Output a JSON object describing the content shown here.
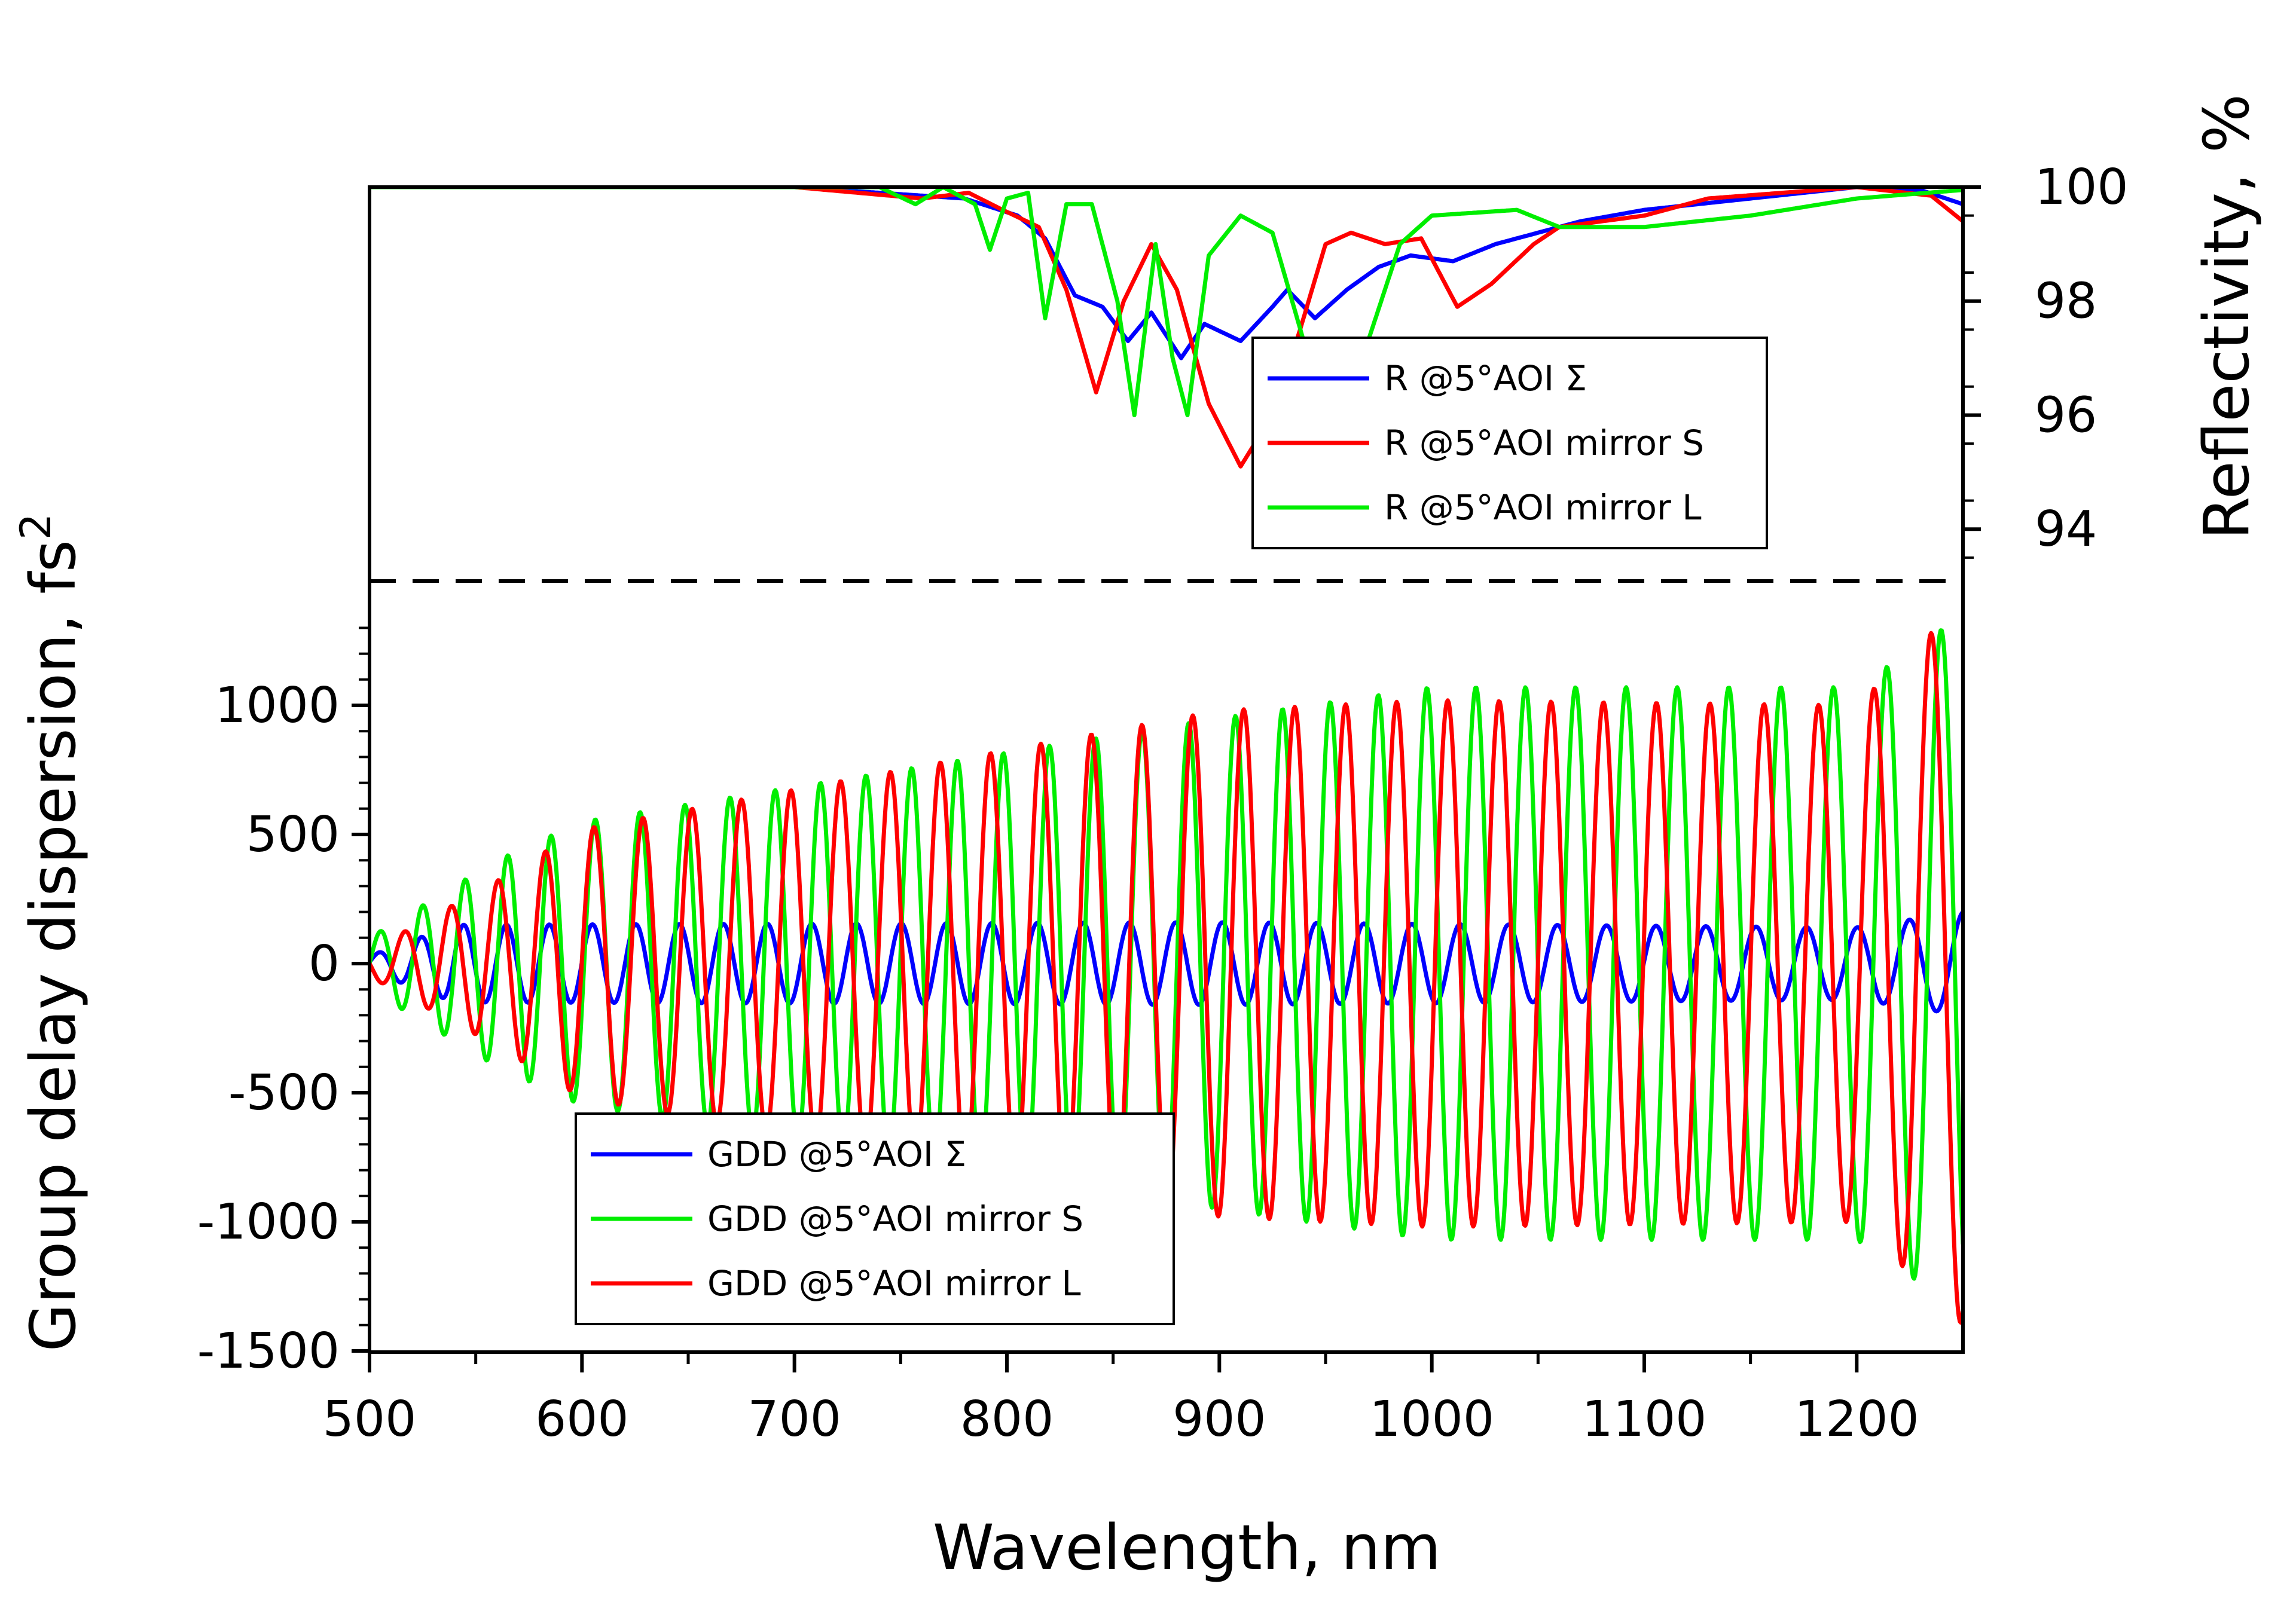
{
  "chart_data": {
    "type": "line",
    "xlabel": "Wavelength, nm",
    "xlim": [
      500,
      1250
    ],
    "x_ticks": [
      "500",
      "600",
      "700",
      "800",
      "900",
      "1000",
      "1100",
      "1200"
    ],
    "panels": [
      {
        "id": "reflectivity",
        "ylabel": "Reflectivity, %",
        "ylim": [
          93.3,
          100
        ],
        "y_ticks": [
          "94",
          "96",
          "98",
          "100"
        ],
        "y_axis_side": "right",
        "legend": "center-right",
        "series": [
          {
            "name": "R @5°AOI Σ",
            "color": "#0000FF",
            "points": [
              [
                500,
                100
              ],
              [
                700,
                100
              ],
              [
                780,
                99.8
              ],
              [
                805,
                99.5
              ],
              [
                818,
                99.1
              ],
              [
                832,
                98.1
              ],
              [
                845,
                97.9
              ],
              [
                857,
                97.3
              ],
              [
                868,
                97.8
              ],
              [
                882,
                97
              ],
              [
                893,
                97.6
              ],
              [
                910,
                97.3
              ],
              [
                925,
                97.9
              ],
              [
                932,
                98.2
              ],
              [
                945,
                97.7
              ],
              [
                960,
                98.2
              ],
              [
                975,
                98.6
              ],
              [
                990,
                98.8
              ],
              [
                1010,
                98.7
              ],
              [
                1030,
                99
              ],
              [
                1050,
                99.2
              ],
              [
                1070,
                99.4
              ],
              [
                1100,
                99.6
              ],
              [
                1150,
                99.8
              ],
              [
                1200,
                100
              ],
              [
                1230,
                99.95
              ],
              [
                1250,
                99.7
              ]
            ]
          },
          {
            "name": "R @5°AOI mirror S",
            "color": "#FF0000",
            "points": [
              [
                500,
                100
              ],
              [
                700,
                100
              ],
              [
                760,
                99.8
              ],
              [
                782,
                99.9
              ],
              [
                798,
                99.6
              ],
              [
                815,
                99.3
              ],
              [
                828,
                98.2
              ],
              [
                842,
                96.4
              ],
              [
                855,
                98
              ],
              [
                868,
                99
              ],
              [
                880,
                98.2
              ],
              [
                895,
                96.2
              ],
              [
                910,
                95.1
              ],
              [
                925,
                96
              ],
              [
                938,
                97.5
              ],
              [
                950,
                99
              ],
              [
                962,
                99.2
              ],
              [
                978,
                99
              ],
              [
                995,
                99.1
              ],
              [
                1012,
                97.9
              ],
              [
                1028,
                98.3
              ],
              [
                1048,
                99
              ],
              [
                1060,
                99.3
              ],
              [
                1100,
                99.5
              ],
              [
                1130,
                99.8
              ],
              [
                1200,
                100
              ],
              [
                1235,
                99.85
              ],
              [
                1250,
                99.4
              ]
            ]
          },
          {
            "name": "R @5°AOI mirror L",
            "color": "#00EE00",
            "points": [
              [
                500,
                100
              ],
              [
                740,
                100
              ],
              [
                757,
                99.7
              ],
              [
                770,
                100
              ],
              [
                785,
                99.7
              ],
              [
                792,
                98.9
              ],
              [
                800,
                99.8
              ],
              [
                810,
                99.9
              ],
              [
                818,
                97.7
              ],
              [
                828,
                99.7
              ],
              [
                840,
                99.7
              ],
              [
                852,
                98
              ],
              [
                860,
                96
              ],
              [
                870,
                99
              ],
              [
                878,
                97
              ],
              [
                885,
                96
              ],
              [
                895,
                98.8
              ],
              [
                910,
                99.5
              ],
              [
                925,
                99.2
              ],
              [
                942,
                97
              ],
              [
                955,
                96.3
              ],
              [
                970,
                97.3
              ],
              [
                985,
                99
              ],
              [
                1000,
                99.5
              ],
              [
                1040,
                99.6
              ],
              [
                1060,
                99.3
              ],
              [
                1100,
                99.3
              ],
              [
                1150,
                99.5
              ],
              [
                1200,
                99.8
              ],
              [
                1250,
                99.95
              ]
            ]
          }
        ]
      },
      {
        "id": "gdd",
        "ylabel": "Group delay dispersion, fs²",
        "ylim": [
          -1500,
          1500
        ],
        "y_ticks": [
          "-1500",
          "-1000",
          "-500",
          "0",
          "500",
          "1000"
        ],
        "y_axis_side": "left",
        "legend": "bottom-left",
        "series": [
          {
            "name": "GDD @5°AOI Σ",
            "color": "#0000FF",
            "envelope": {
              "x": [
                500,
                540,
                900,
                1200,
                1250
              ],
              "amplitude": [
                30,
                150,
                160,
                140,
                200
              ],
              "period_nm": [
                20,
                20,
                22,
                24,
                26
              ],
              "phase": 0.2
            }
          },
          {
            "name": "GDD @5°AOI mirror S",
            "color": "#00EE00",
            "envelope": {
              "x": [
                500,
                560,
                600,
                900,
                1000,
                1200,
                1250
              ],
              "amplitude": [
                100,
                400,
                550,
                950,
                1070,
                1070,
                1350
              ],
              "period_nm": [
                20,
                20,
                21,
                22,
                23,
                25,
                26
              ],
              "phase": 0.0
            }
          },
          {
            "name": "GDD @5°AOI mirror L",
            "color": "#FF0000",
            "envelope": {
              "x": [
                500,
                560,
                600,
                900,
                1000,
                1200,
                1250
              ],
              "amplitude": [
                50,
                320,
                520,
                980,
                1020,
                1000,
                1400
              ],
              "period_nm": [
                22,
                22,
                23,
                24,
                24,
                26,
                28
              ],
              "phase": 3.14
            }
          }
        ]
      }
    ]
  }
}
